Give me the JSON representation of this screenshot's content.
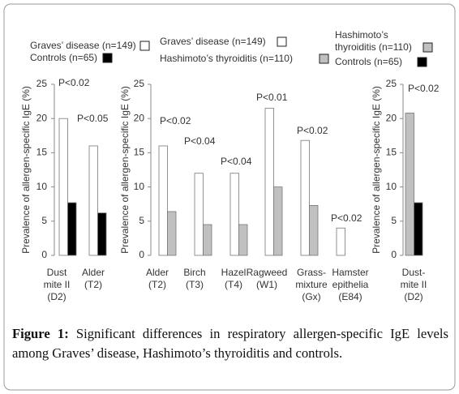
{
  "chart_data": [
    {
      "type": "bar",
      "y_label": "Prevalence of allergen-specific IgE (%)",
      "categories": [
        "Dust\nmite II\n(D2)",
        "Alder\n(T2)"
      ],
      "series": [
        {
          "name": "Graves’ disease (n=149)",
          "color": "#ffffff",
          "values": [
            20,
            16
          ]
        },
        {
          "name": "Controls (n=65)",
          "color": "#000000",
          "values": [
            7.7,
            6.2
          ]
        }
      ],
      "annotations": [
        "P<0.02",
        "P<0.05"
      ],
      "ylim": [
        0,
        25
      ],
      "yticks": [
        0,
        5,
        10,
        15,
        20,
        25
      ]
    },
    {
      "type": "bar",
      "y_label": "Prevalence of allergen-specific IgE (%)",
      "categories": [
        "Alder\n(T2)",
        "Birch\n(T3)",
        "Hazel\n(T4)",
        "Ragweed\n(W1)",
        "Grass-\nmixture\n(Gx)",
        "Hamster\nepithelia\n(E84)"
      ],
      "series": [
        {
          "name": "Graves’ disease (n=149)",
          "color": "#ffffff",
          "values": [
            16,
            12,
            12,
            21.5,
            16.8,
            4
          ]
        },
        {
          "name": "Hashimoto’s thyroiditis (n=110)",
          "color": "#c0c0c0",
          "values": [
            6.4,
            4.5,
            4.5,
            10,
            7.3,
            null
          ]
        }
      ],
      "annotations": [
        "P<0.02",
        "P<0.04",
        "P<0.04",
        "P<0.01",
        "P<0.02",
        "P<0.02"
      ],
      "ylim": [
        0,
        25
      ],
      "yticks": [
        0,
        5,
        10,
        15,
        20,
        25
      ]
    },
    {
      "type": "bar",
      "y_label": "Prevalence of allergen-specific IgE (%)",
      "categories": [
        "Dust-\nmite II\n(D2)"
      ],
      "series": [
        {
          "name": "Hashimoto’s\nthyroiditis (n=110)",
          "color": "#c0c0c0",
          "values": [
            20.8
          ]
        },
        {
          "name": "Controls (n=65)",
          "color": "#000000",
          "values": [
            7.7
          ]
        }
      ],
      "annotations": [
        "P<0.02"
      ],
      "ylim": [
        0,
        25
      ],
      "yticks": [
        0,
        5,
        10,
        15,
        20,
        25
      ]
    }
  ],
  "caption": {
    "label": "Figure 1:",
    "text": " Significant differences in respiratory allergen-specific IgE levels among Graves’ disease, Hashimoto’s thyroiditis and controls."
  }
}
